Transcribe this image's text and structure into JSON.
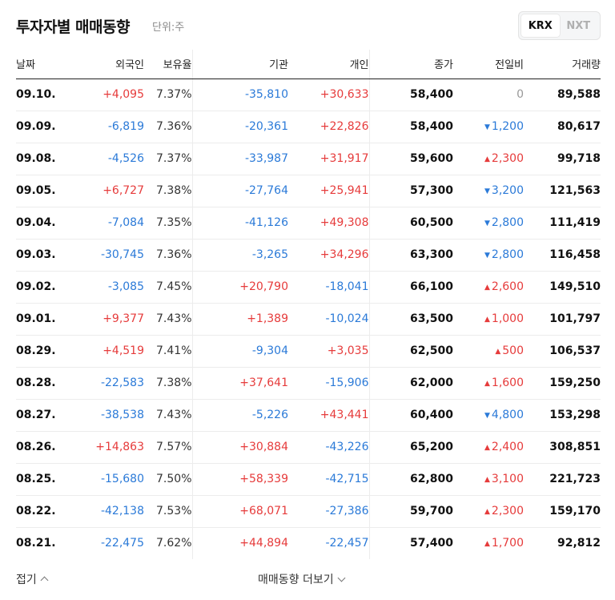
{
  "header": {
    "title": "투자자별 매매동향",
    "unit": "단위:주",
    "tabs": [
      {
        "label": "KRX",
        "active": true
      },
      {
        "label": "NXT",
        "active": false
      }
    ]
  },
  "table": {
    "columns": [
      "날짜",
      "외국인",
      "보유율",
      "기관",
      "개인",
      "종가",
      "전일비",
      "거래량"
    ],
    "rows": [
      {
        "date": "09.10.",
        "foreign": "+4,095",
        "ratio": "7.37%",
        "inst": "-35,810",
        "indiv": "+30,633",
        "close": "58,400",
        "change": "0",
        "dir": "flat",
        "volume": "89,588"
      },
      {
        "date": "09.09.",
        "foreign": "-6,819",
        "ratio": "7.36%",
        "inst": "-20,361",
        "indiv": "+22,826",
        "close": "58,400",
        "change": "1,200",
        "dir": "down",
        "volume": "80,617"
      },
      {
        "date": "09.08.",
        "foreign": "-4,526",
        "ratio": "7.37%",
        "inst": "-33,987",
        "indiv": "+31,917",
        "close": "59,600",
        "change": "2,300",
        "dir": "up",
        "volume": "99,718"
      },
      {
        "date": "09.05.",
        "foreign": "+6,727",
        "ratio": "7.38%",
        "inst": "-27,764",
        "indiv": "+25,941",
        "close": "57,300",
        "change": "3,200",
        "dir": "down",
        "volume": "121,563"
      },
      {
        "date": "09.04.",
        "foreign": "-7,084",
        "ratio": "7.35%",
        "inst": "-41,126",
        "indiv": "+49,308",
        "close": "60,500",
        "change": "2,800",
        "dir": "down",
        "volume": "111,419"
      },
      {
        "date": "09.03.",
        "foreign": "-30,745",
        "ratio": "7.36%",
        "inst": "-3,265",
        "indiv": "+34,296",
        "close": "63,300",
        "change": "2,800",
        "dir": "down",
        "volume": "116,458"
      },
      {
        "date": "09.02.",
        "foreign": "-3,085",
        "ratio": "7.45%",
        "inst": "+20,790",
        "indiv": "-18,041",
        "close": "66,100",
        "change": "2,600",
        "dir": "up",
        "volume": "149,510"
      },
      {
        "date": "09.01.",
        "foreign": "+9,377",
        "ratio": "7.43%",
        "inst": "+1,389",
        "indiv": "-10,024",
        "close": "63,500",
        "change": "1,000",
        "dir": "up",
        "volume": "101,797"
      },
      {
        "date": "08.29.",
        "foreign": "+4,519",
        "ratio": "7.41%",
        "inst": "-9,304",
        "indiv": "+3,035",
        "close": "62,500",
        "change": "500",
        "dir": "up",
        "volume": "106,537"
      },
      {
        "date": "08.28.",
        "foreign": "-22,583",
        "ratio": "7.38%",
        "inst": "+37,641",
        "indiv": "-15,906",
        "close": "62,000",
        "change": "1,600",
        "dir": "up",
        "volume": "159,250"
      },
      {
        "date": "08.27.",
        "foreign": "-38,538",
        "ratio": "7.43%",
        "inst": "-5,226",
        "indiv": "+43,441",
        "close": "60,400",
        "change": "4,800",
        "dir": "down",
        "volume": "153,298"
      },
      {
        "date": "08.26.",
        "foreign": "+14,863",
        "ratio": "7.57%",
        "inst": "+30,884",
        "indiv": "-43,226",
        "close": "65,200",
        "change": "2,400",
        "dir": "up",
        "volume": "308,851"
      },
      {
        "date": "08.25.",
        "foreign": "-15,680",
        "ratio": "7.50%",
        "inst": "+58,339",
        "indiv": "-42,715",
        "close": "62,800",
        "change": "3,100",
        "dir": "up",
        "volume": "221,723"
      },
      {
        "date": "08.22.",
        "foreign": "-42,138",
        "ratio": "7.53%",
        "inst": "+68,071",
        "indiv": "-27,386",
        "close": "59,700",
        "change": "2,300",
        "dir": "up",
        "volume": "159,170"
      },
      {
        "date": "08.21.",
        "foreign": "-22,475",
        "ratio": "7.62%",
        "inst": "+44,894",
        "indiv": "-22,457",
        "close": "57,400",
        "change": "1,700",
        "dir": "up",
        "volume": "92,812"
      }
    ]
  },
  "footer": {
    "fold_label": "접기",
    "more_label": "매매동향 더보기"
  },
  "colors": {
    "up": "#e63b3b",
    "down": "#2b7ad8",
    "flat": "#999999"
  }
}
